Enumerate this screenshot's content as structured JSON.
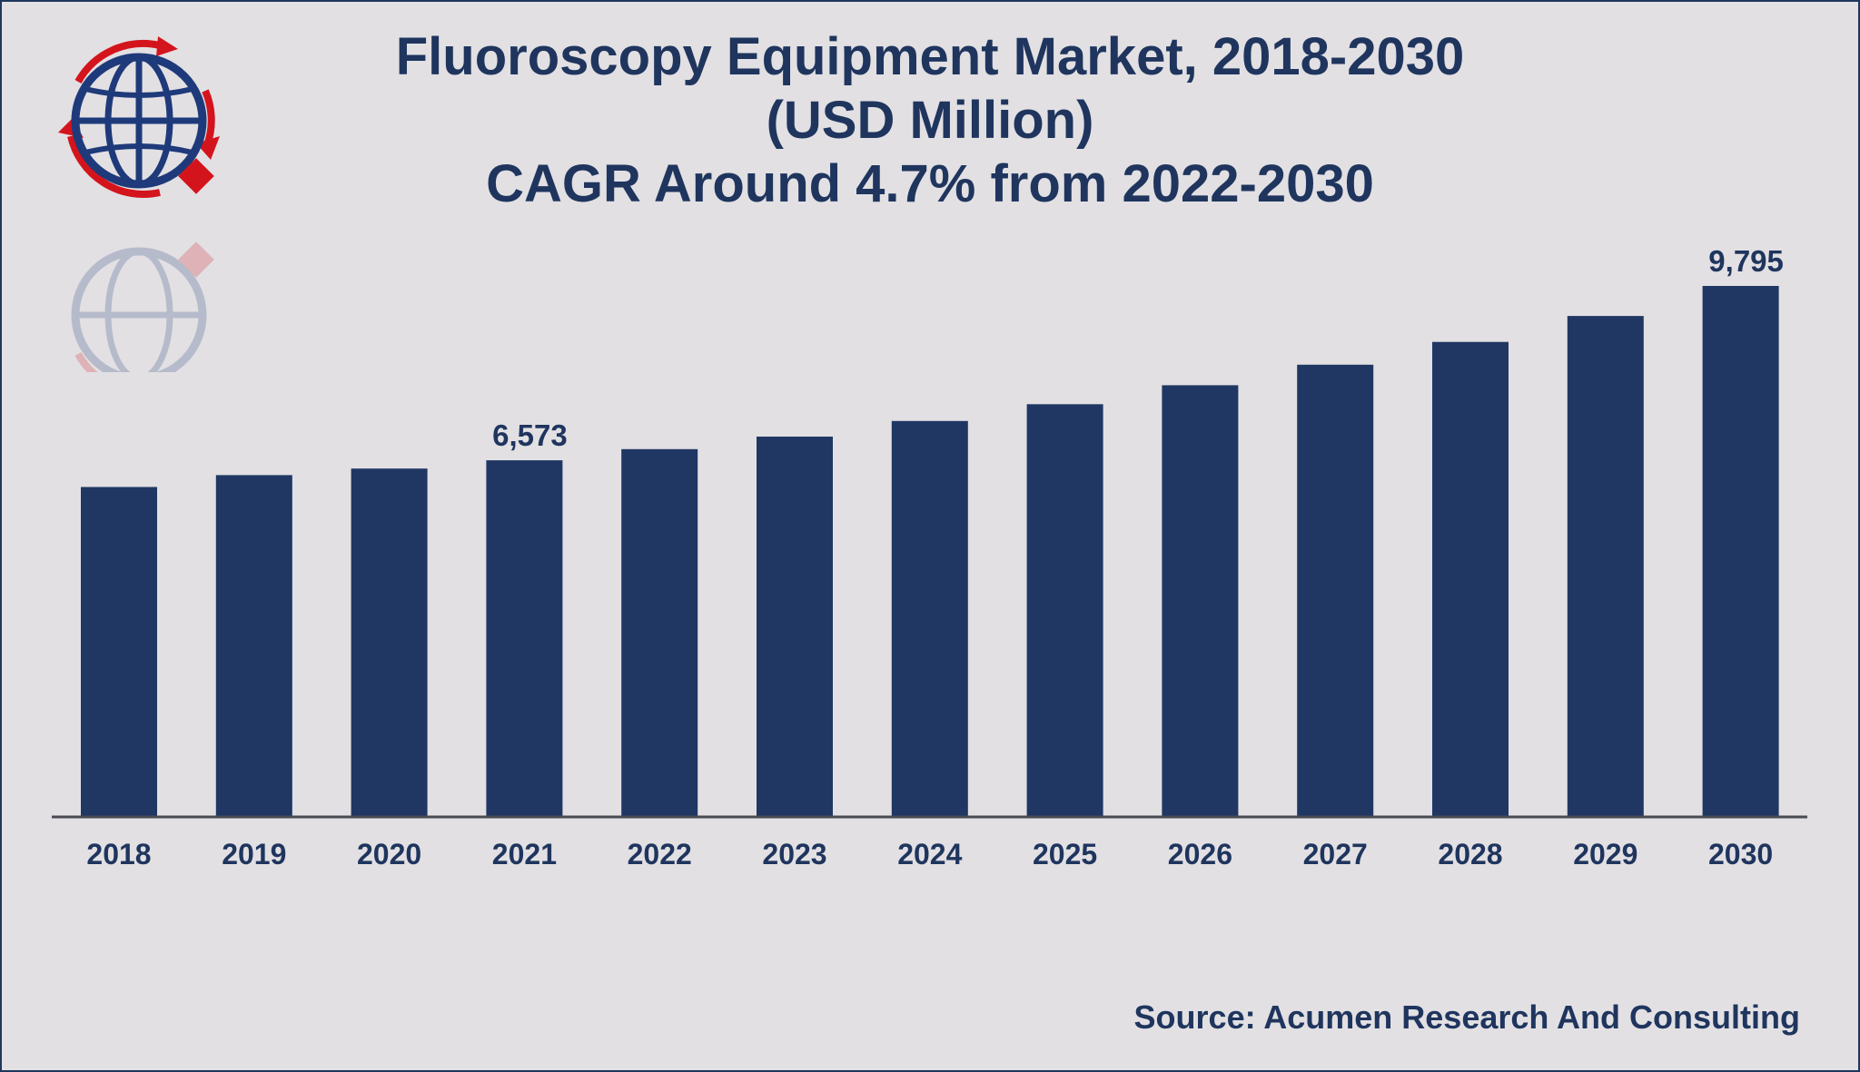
{
  "title_lines": [
    "Fluoroscopy Equipment Market, 2018-2030",
    "(USD Million)",
    "CAGR Around 4.7% from 2022-2030"
  ],
  "source": "Source: Acumen Research And Consulting",
  "colors": {
    "background": "#e2e0e3",
    "bar": "#203764",
    "text": "#1f355e",
    "logo_red": "#d4141c",
    "logo_blue": "#1f3a7a"
  },
  "logo": {
    "icon": "globe-with-arrows-logo-icon"
  },
  "chart_data": {
    "type": "bar",
    "title": "Fluoroscopy Equipment Market, 2018-2030 (USD Million) CAGR Around 4.7% from 2022-2030",
    "categories": [
      "2018",
      "2019",
      "2020",
      "2021",
      "2022",
      "2023",
      "2024",
      "2025",
      "2026",
      "2027",
      "2028",
      "2029",
      "2030"
    ],
    "values": [
      6080,
      6300,
      6420,
      6573,
      6780,
      7010,
      7300,
      7610,
      7960,
      8340,
      8760,
      9240,
      9795
    ],
    "data_labels": [
      {
        "category": "2021",
        "text": "6,573"
      },
      {
        "category": "2030",
        "text": "9,795"
      }
    ],
    "xlabel": "",
    "ylabel": "",
    "ylim": [
      0,
      10000
    ],
    "grid": false,
    "legend": "none"
  }
}
